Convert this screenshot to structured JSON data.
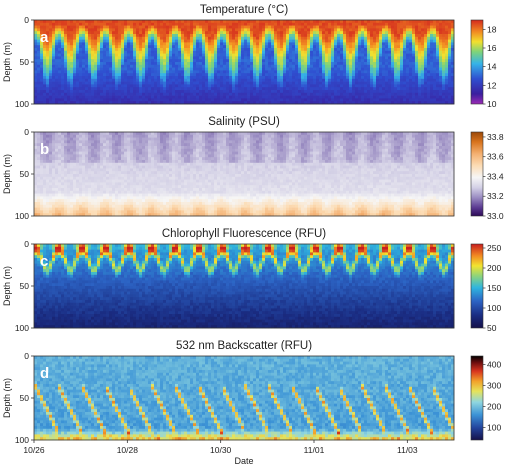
{
  "chart_data": [
    {
      "type": "heatmap",
      "panel_label": "a",
      "title": "Temperature (°C)",
      "variable": "temperature",
      "ylabel": "Depth (m)",
      "ylim": [
        100,
        0
      ],
      "y_ticks": [
        "0",
        "50",
        "100"
      ],
      "colorbar": {
        "ticks": [
          "18",
          "16",
          "14",
          "12",
          "10"
        ],
        "range": [
          10,
          19
        ],
        "colormap": "rainbow-purple-to-red"
      },
      "summary": {
        "surface_mean": 17.5,
        "deep_mean": 11.5,
        "cycles_visible": 18,
        "mixed_layer_depth_m": [
          8,
          60
        ]
      }
    },
    {
      "type": "heatmap",
      "panel_label": "b",
      "title": "Salinity (PSU)",
      "variable": "salinity",
      "ylabel": "Depth (m)",
      "ylim": [
        100,
        0
      ],
      "y_ticks": [
        "0",
        "50",
        "100"
      ],
      "colorbar": {
        "ticks": [
          "33.8",
          "33.6",
          "33.4",
          "33.2",
          "33.0"
        ],
        "range": [
          33.0,
          33.85
        ],
        "colormap": "purple-white-orange"
      },
      "summary": {
        "surface_mean": 33.25,
        "deep_mean": 33.55,
        "cycles_visible": 18
      }
    },
    {
      "type": "heatmap",
      "panel_label": "c",
      "title": "Chlorophyll Fluorescence (RFU)",
      "variable": "chlorophyll",
      "ylabel": "Depth (m)",
      "ylim": [
        100,
        0
      ],
      "y_ticks": [
        "0",
        "50",
        "100"
      ],
      "colorbar": {
        "ticks": [
          "250",
          "200",
          "150",
          "100",
          "50"
        ],
        "range": [
          50,
          260
        ],
        "colormap": "jet"
      },
      "summary": {
        "surface_max": 250,
        "deep_mean": 70,
        "cycles_visible": 18
      }
    },
    {
      "type": "heatmap",
      "panel_label": "d",
      "title": "532 nm Backscatter (RFU)",
      "variable": "backscatter",
      "ylabel": "Depth (m)",
      "xlabel": "Date",
      "ylim": [
        100,
        0
      ],
      "y_ticks": [
        "0",
        "50",
        "100"
      ],
      "x_ticks": [
        "10/26",
        "10/28",
        "10/30",
        "11/01",
        "11/03"
      ],
      "xlim": [
        "10/26",
        "11/04"
      ],
      "colorbar": {
        "ticks": [
          "400",
          "300",
          "200",
          "100"
        ],
        "range": [
          40,
          440
        ],
        "colormap": "jet-to-black"
      },
      "summary": {
        "background": 150,
        "band_max": 440,
        "cycles_visible": 18
      }
    }
  ]
}
